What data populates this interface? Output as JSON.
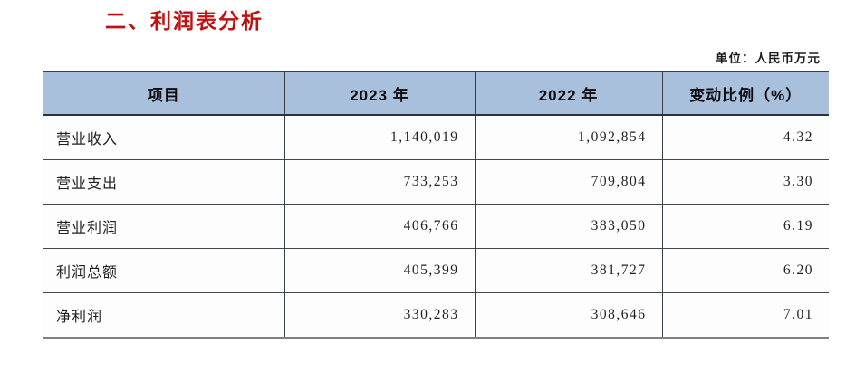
{
  "title": "二、利润表分析",
  "unit_label": "单位：人民币万元",
  "colors": {
    "title_red": "#c01010",
    "header_bg": "#a8c0dc",
    "border_dark": "#3a3f46",
    "background": "#ffffff"
  },
  "table": {
    "columns": [
      "项目",
      "2023 年",
      "2022 年",
      "变动比例（%）"
    ],
    "rows": [
      {
        "item": "营业收入",
        "y2023": "1,140,019",
        "y2022": "1,092,854",
        "change": "4.32"
      },
      {
        "item": "营业支出",
        "y2023": "733,253",
        "y2022": "709,804",
        "change": "3.30"
      },
      {
        "item": "营业利润",
        "y2023": "406,766",
        "y2022": "383,050",
        "change": "6.19"
      },
      {
        "item": "利润总额",
        "y2023": "405,399",
        "y2022": "381,727",
        "change": "6.20"
      },
      {
        "item": "净利润",
        "y2023": "330,283",
        "y2022": "308,646",
        "change": "7.01"
      }
    ]
  }
}
